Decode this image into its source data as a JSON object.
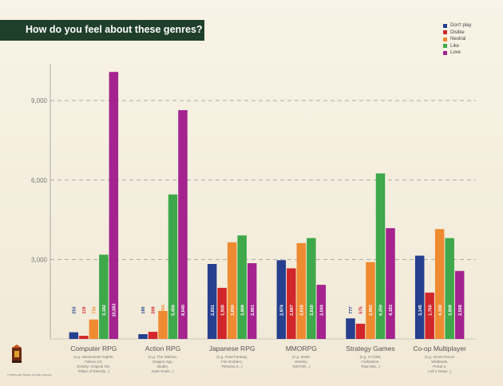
{
  "title": "How do you feel about these genres?",
  "copyright": "© 2015 Larian Studios. All rights reserved.",
  "colors": {
    "dont_play": "#263f8e",
    "dislike": "#d1262a",
    "neutral": "#ee8a30",
    "like": "#3ea84a",
    "love": "#a4238f",
    "banner": "#1f3f2a"
  },
  "legend": [
    {
      "label": "Don't play",
      "color": "#263f8e"
    },
    {
      "label": "Dislike",
      "color": "#d1262a"
    },
    {
      "label": "Neutral",
      "color": "#ee8a30"
    },
    {
      "label": "Like",
      "color": "#3ea84a"
    },
    {
      "label": "Love",
      "color": "#a4238f"
    }
  ],
  "chart_data": {
    "type": "bar",
    "title": "How do you feel about these genres?",
    "xlabel": "",
    "ylabel": "",
    "ylim": [
      0,
      10300
    ],
    "yticks": [
      3000,
      6000,
      9000
    ],
    "ytick_labels": [
      "3,000",
      "6,000",
      "9,000"
    ],
    "grid": true,
    "legend_position": "top-right",
    "categories": [
      "Computer RPG",
      "Action RPG",
      "Japanese RPG",
      "MMORPG",
      "Strategy Games",
      "Co-op Multiplayer"
    ],
    "category_notes": [
      [
        "(e.g. Neverwinter Nights,",
        "Fallout 1/2,",
        "Divinity: Original Sin,",
        "Pillars of Eternity...)"
      ],
      [
        "(e.g. The Witcher,",
        "Dragon Age,",
        "Diablo,",
        "Dark Souls...)"
      ],
      [
        "(e.g. Final Fantasy,",
        "Fire Emblem,",
        "Persona 5...)"
      ],
      [
        "(e.g. WoW,",
        "Destiny,",
        "SWTOR...)"
      ],
      [
        "(e.g. X-COM,",
        "Civilization,",
        "Total War...)"
      ],
      [
        "(e.g. Ghost Recon",
        "Wildlands,",
        "Portal 2,",
        "Left 4 Dead...)"
      ]
    ],
    "series": [
      {
        "name": "Don't play",
        "values": [
          253,
          180,
          2831,
          2974,
          777,
          3145
        ],
        "labels": [
          "253",
          "180",
          "2,831",
          "2,974",
          "777",
          "3,145"
        ]
      },
      {
        "name": "Dislike",
        "values": [
          119,
          269,
          1930,
          2667,
          575,
          1750
        ],
        "labels": [
          "119",
          "269",
          "1,930",
          "2,667",
          "575",
          "1,750"
        ]
      },
      {
        "name": "Neutral",
        "values": [
          734,
          1056,
          3650,
          3618,
          2902,
          4150
        ],
        "labels": [
          "734",
          "1,056",
          "3,650",
          "3,618",
          "2,902",
          "4,150"
        ]
      },
      {
        "name": "Like",
        "values": [
          3182,
          5456,
          3909,
          3810,
          6250,
          3808
        ],
        "labels": [
          "3,182",
          "5,456",
          "3,909",
          "3,810",
          "6,250",
          "3,808"
        ]
      },
      {
        "name": "Love",
        "values": [
          10083,
          8640,
          2861,
          2044,
          4183,
          2568
        ],
        "labels": [
          "10,083",
          "8,640",
          "2,861",
          "2,044",
          "4,183",
          "2,568"
        ]
      }
    ]
  }
}
